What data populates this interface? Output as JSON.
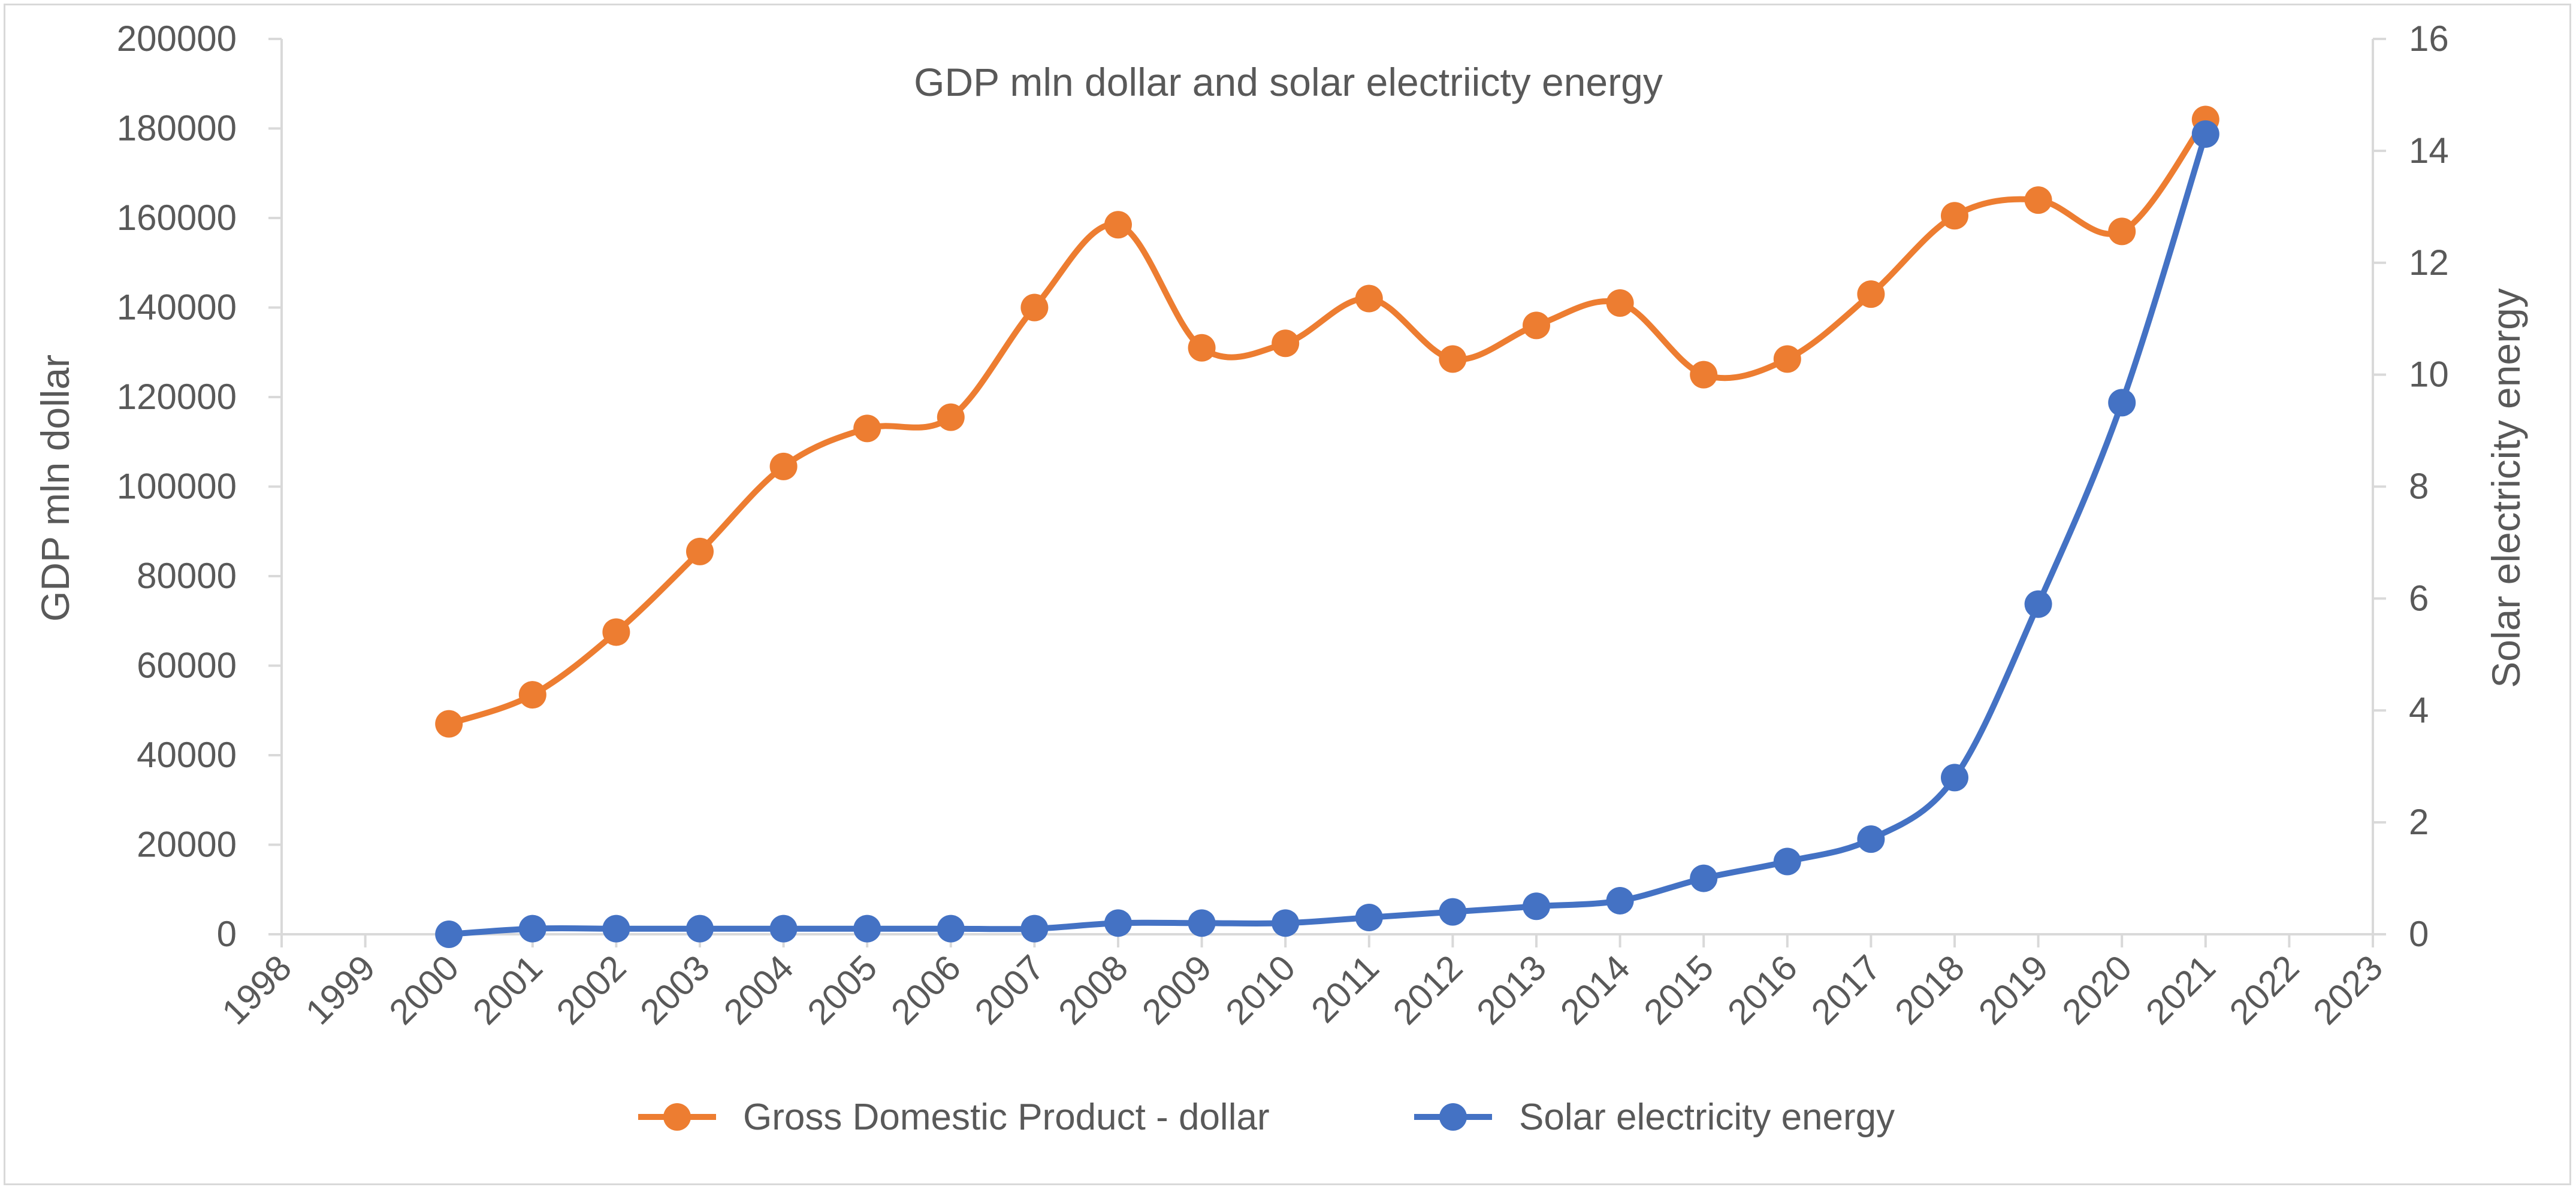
{
  "chart_data": {
    "type": "line",
    "title": "GDP mln dollar and solar electriicty energy",
    "xlabel": "",
    "ylabel": "GDP mln dollar",
    "y2label": "Solar electricity energy",
    "x_ticks": [
      "1998",
      "1999",
      "2000",
      "2001",
      "2002",
      "2003",
      "2004",
      "2005",
      "2006",
      "2007",
      "2008",
      "2009",
      "2010",
      "2011",
      "2012",
      "2013",
      "2014",
      "2015",
      "2016",
      "2017",
      "2018",
      "2019",
      "2020",
      "2021",
      "2022",
      "2023"
    ],
    "ylim": [
      0,
      200000
    ],
    "y_ticks": [
      "0",
      "20000",
      "40000",
      "60000",
      "80000",
      "100000",
      "120000",
      "140000",
      "160000",
      "180000",
      "200000"
    ],
    "y2lim": [
      0,
      16
    ],
    "y2_ticks": [
      "0",
      "2",
      "4",
      "6",
      "8",
      "10",
      "12",
      "14",
      "16"
    ],
    "legend_position": "bottom",
    "series": [
      {
        "name": "Gross Domestic Product - dollar",
        "axis": "left",
        "color": "#ED7D31",
        "x": [
          2000,
          2001,
          2002,
          2003,
          2004,
          2005,
          2006,
          2007,
          2008,
          2009,
          2010,
          2011,
          2012,
          2013,
          2014,
          2015,
          2016,
          2017,
          2018,
          2019,
          2020,
          2021
        ],
        "values": [
          47000,
          53500,
          67500,
          85500,
          104500,
          113000,
          115500,
          140000,
          158500,
          131000,
          132000,
          142000,
          128500,
          136000,
          141000,
          125000,
          128500,
          143000,
          160500,
          164000,
          157000,
          182000
        ]
      },
      {
        "name": "Solar electricity energy",
        "axis": "right",
        "color": "#4472C4",
        "x": [
          2000,
          2001,
          2002,
          2003,
          2004,
          2005,
          2006,
          2007,
          2008,
          2009,
          2010,
          2011,
          2012,
          2013,
          2014,
          2015,
          2016,
          2017,
          2018,
          2019,
          2020,
          2021
        ],
        "values": [
          0,
          0.1,
          0.1,
          0.1,
          0.1,
          0.1,
          0.1,
          0.1,
          0.2,
          0.2,
          0.2,
          0.3,
          0.4,
          0.5,
          0.6,
          1.0,
          1.3,
          1.7,
          2.8,
          5.9,
          9.5,
          14.3
        ]
      }
    ]
  }
}
